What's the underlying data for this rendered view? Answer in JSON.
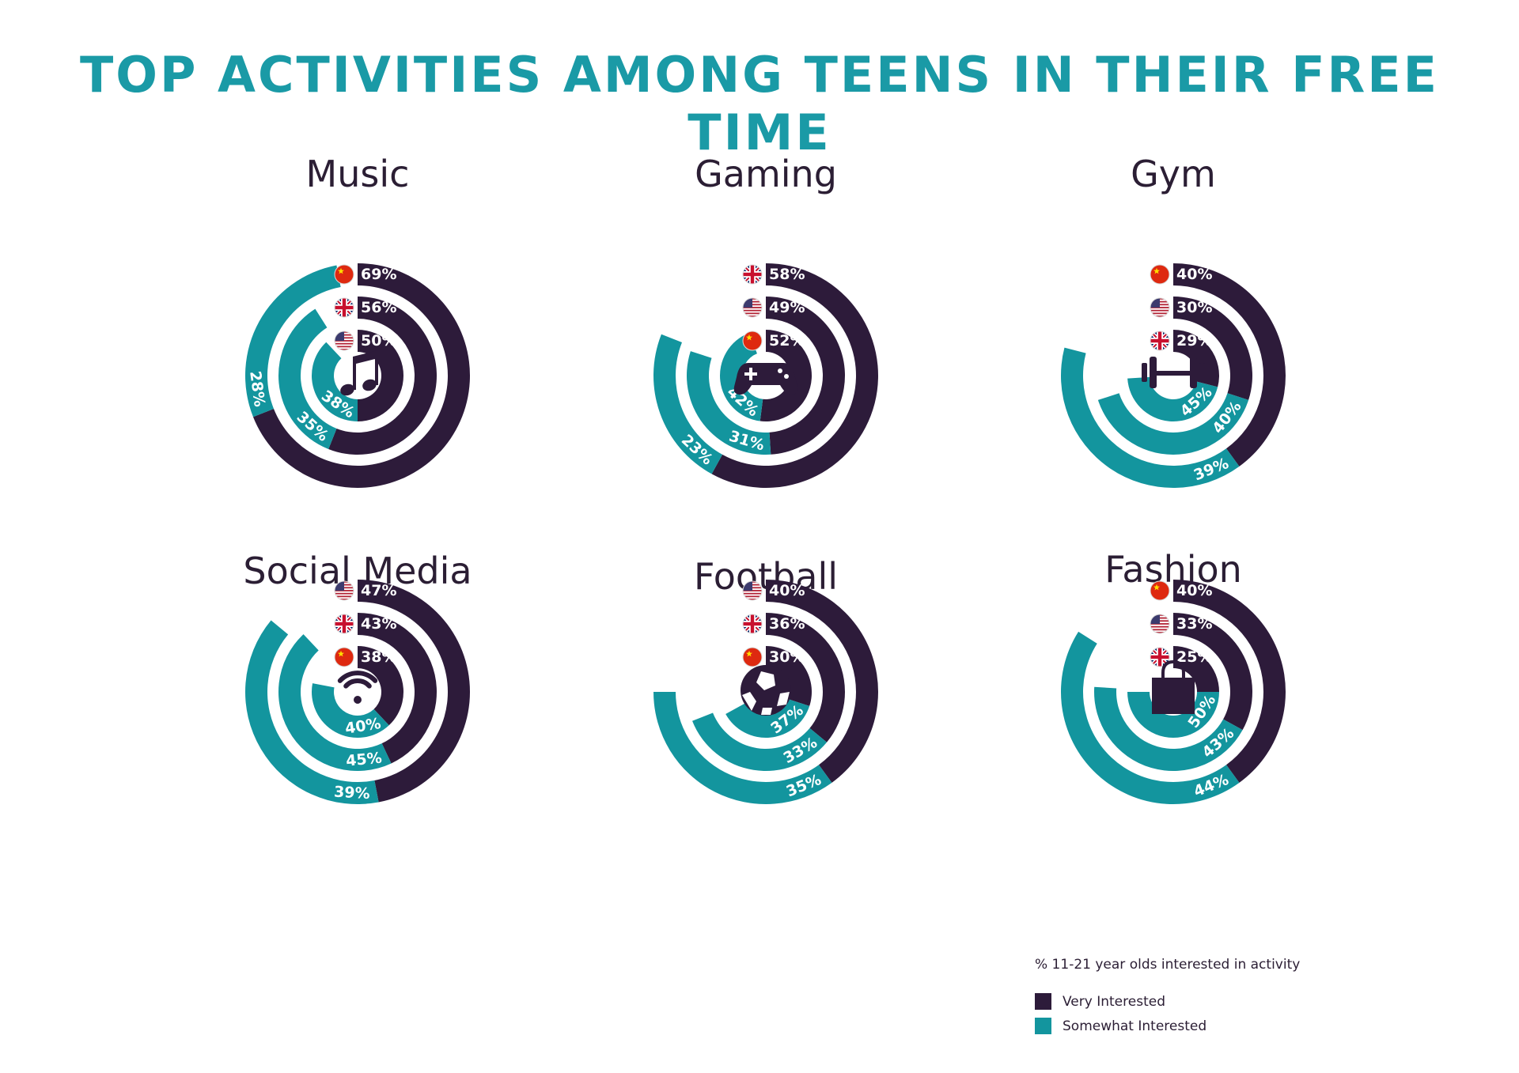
{
  "title": "TOP ACTIVITIES AMONG TEENS IN THEIR FREE TIME",
  "colors": {
    "very": "#2d1b3a",
    "somewhat": "#13959e",
    "title": "#1a9aa6"
  },
  "legend": {
    "title": "% 11-21 year olds interested in activity",
    "very": "Very Interested",
    "somewhat": "Somewhat Interested"
  },
  "chart_data": [
    {
      "type": "radial-bar",
      "title": "Music",
      "icon": "music-note-icon",
      "rings": [
        {
          "country": "China",
          "flag": "china-flag-icon",
          "very": 69,
          "somewhat": 28
        },
        {
          "country": "UK",
          "flag": "uk-flag-icon",
          "very": 56,
          "somewhat": 35
        },
        {
          "country": "USA",
          "flag": "usa-flag-icon",
          "very": 50,
          "somewhat": 38
        }
      ]
    },
    {
      "type": "radial-bar",
      "title": "Gaming",
      "icon": "game-controller-icon",
      "rings": [
        {
          "country": "UK",
          "flag": "uk-flag-icon",
          "very": 58,
          "somewhat": 23
        },
        {
          "country": "USA",
          "flag": "usa-flag-icon",
          "very": 49,
          "somewhat": 31
        },
        {
          "country": "China",
          "flag": "china-flag-icon",
          "very": 52,
          "somewhat": 42
        }
      ]
    },
    {
      "type": "radial-bar",
      "title": "Gym",
      "icon": "dumbbell-icon",
      "rings": [
        {
          "country": "China",
          "flag": "china-flag-icon",
          "very": 40,
          "somewhat": 39
        },
        {
          "country": "USA",
          "flag": "usa-flag-icon",
          "very": 30,
          "somewhat": 40
        },
        {
          "country": "UK",
          "flag": "uk-flag-icon",
          "very": 29,
          "somewhat": 45
        }
      ]
    },
    {
      "type": "radial-bar",
      "title": "Social Media",
      "icon": "wifi-icon",
      "rings": [
        {
          "country": "USA",
          "flag": "usa-flag-icon",
          "very": 47,
          "somewhat": 39
        },
        {
          "country": "UK",
          "flag": "uk-flag-icon",
          "very": 43,
          "somewhat": 45
        },
        {
          "country": "China",
          "flag": "china-flag-icon",
          "very": 38,
          "somewhat": 40
        }
      ]
    },
    {
      "type": "radial-bar",
      "title": "Football",
      "icon": "soccer-ball-icon",
      "rings": [
        {
          "country": "USA",
          "flag": "usa-flag-icon",
          "very": 40,
          "somewhat": 35
        },
        {
          "country": "UK",
          "flag": "uk-flag-icon",
          "very": 36,
          "somewhat": 33
        },
        {
          "country": "China",
          "flag": "china-flag-icon",
          "very": 30,
          "somewhat": 37
        }
      ]
    },
    {
      "type": "radial-bar",
      "title": "Fashion",
      "icon": "shopping-bag-icon",
      "rings": [
        {
          "country": "China",
          "flag": "china-flag-icon",
          "very": 40,
          "somewhat": 44
        },
        {
          "country": "USA",
          "flag": "usa-flag-icon",
          "very": 33,
          "somewhat": 43
        },
        {
          "country": "UK",
          "flag": "uk-flag-icon",
          "very": 25,
          "somewhat": 50
        }
      ]
    }
  ]
}
